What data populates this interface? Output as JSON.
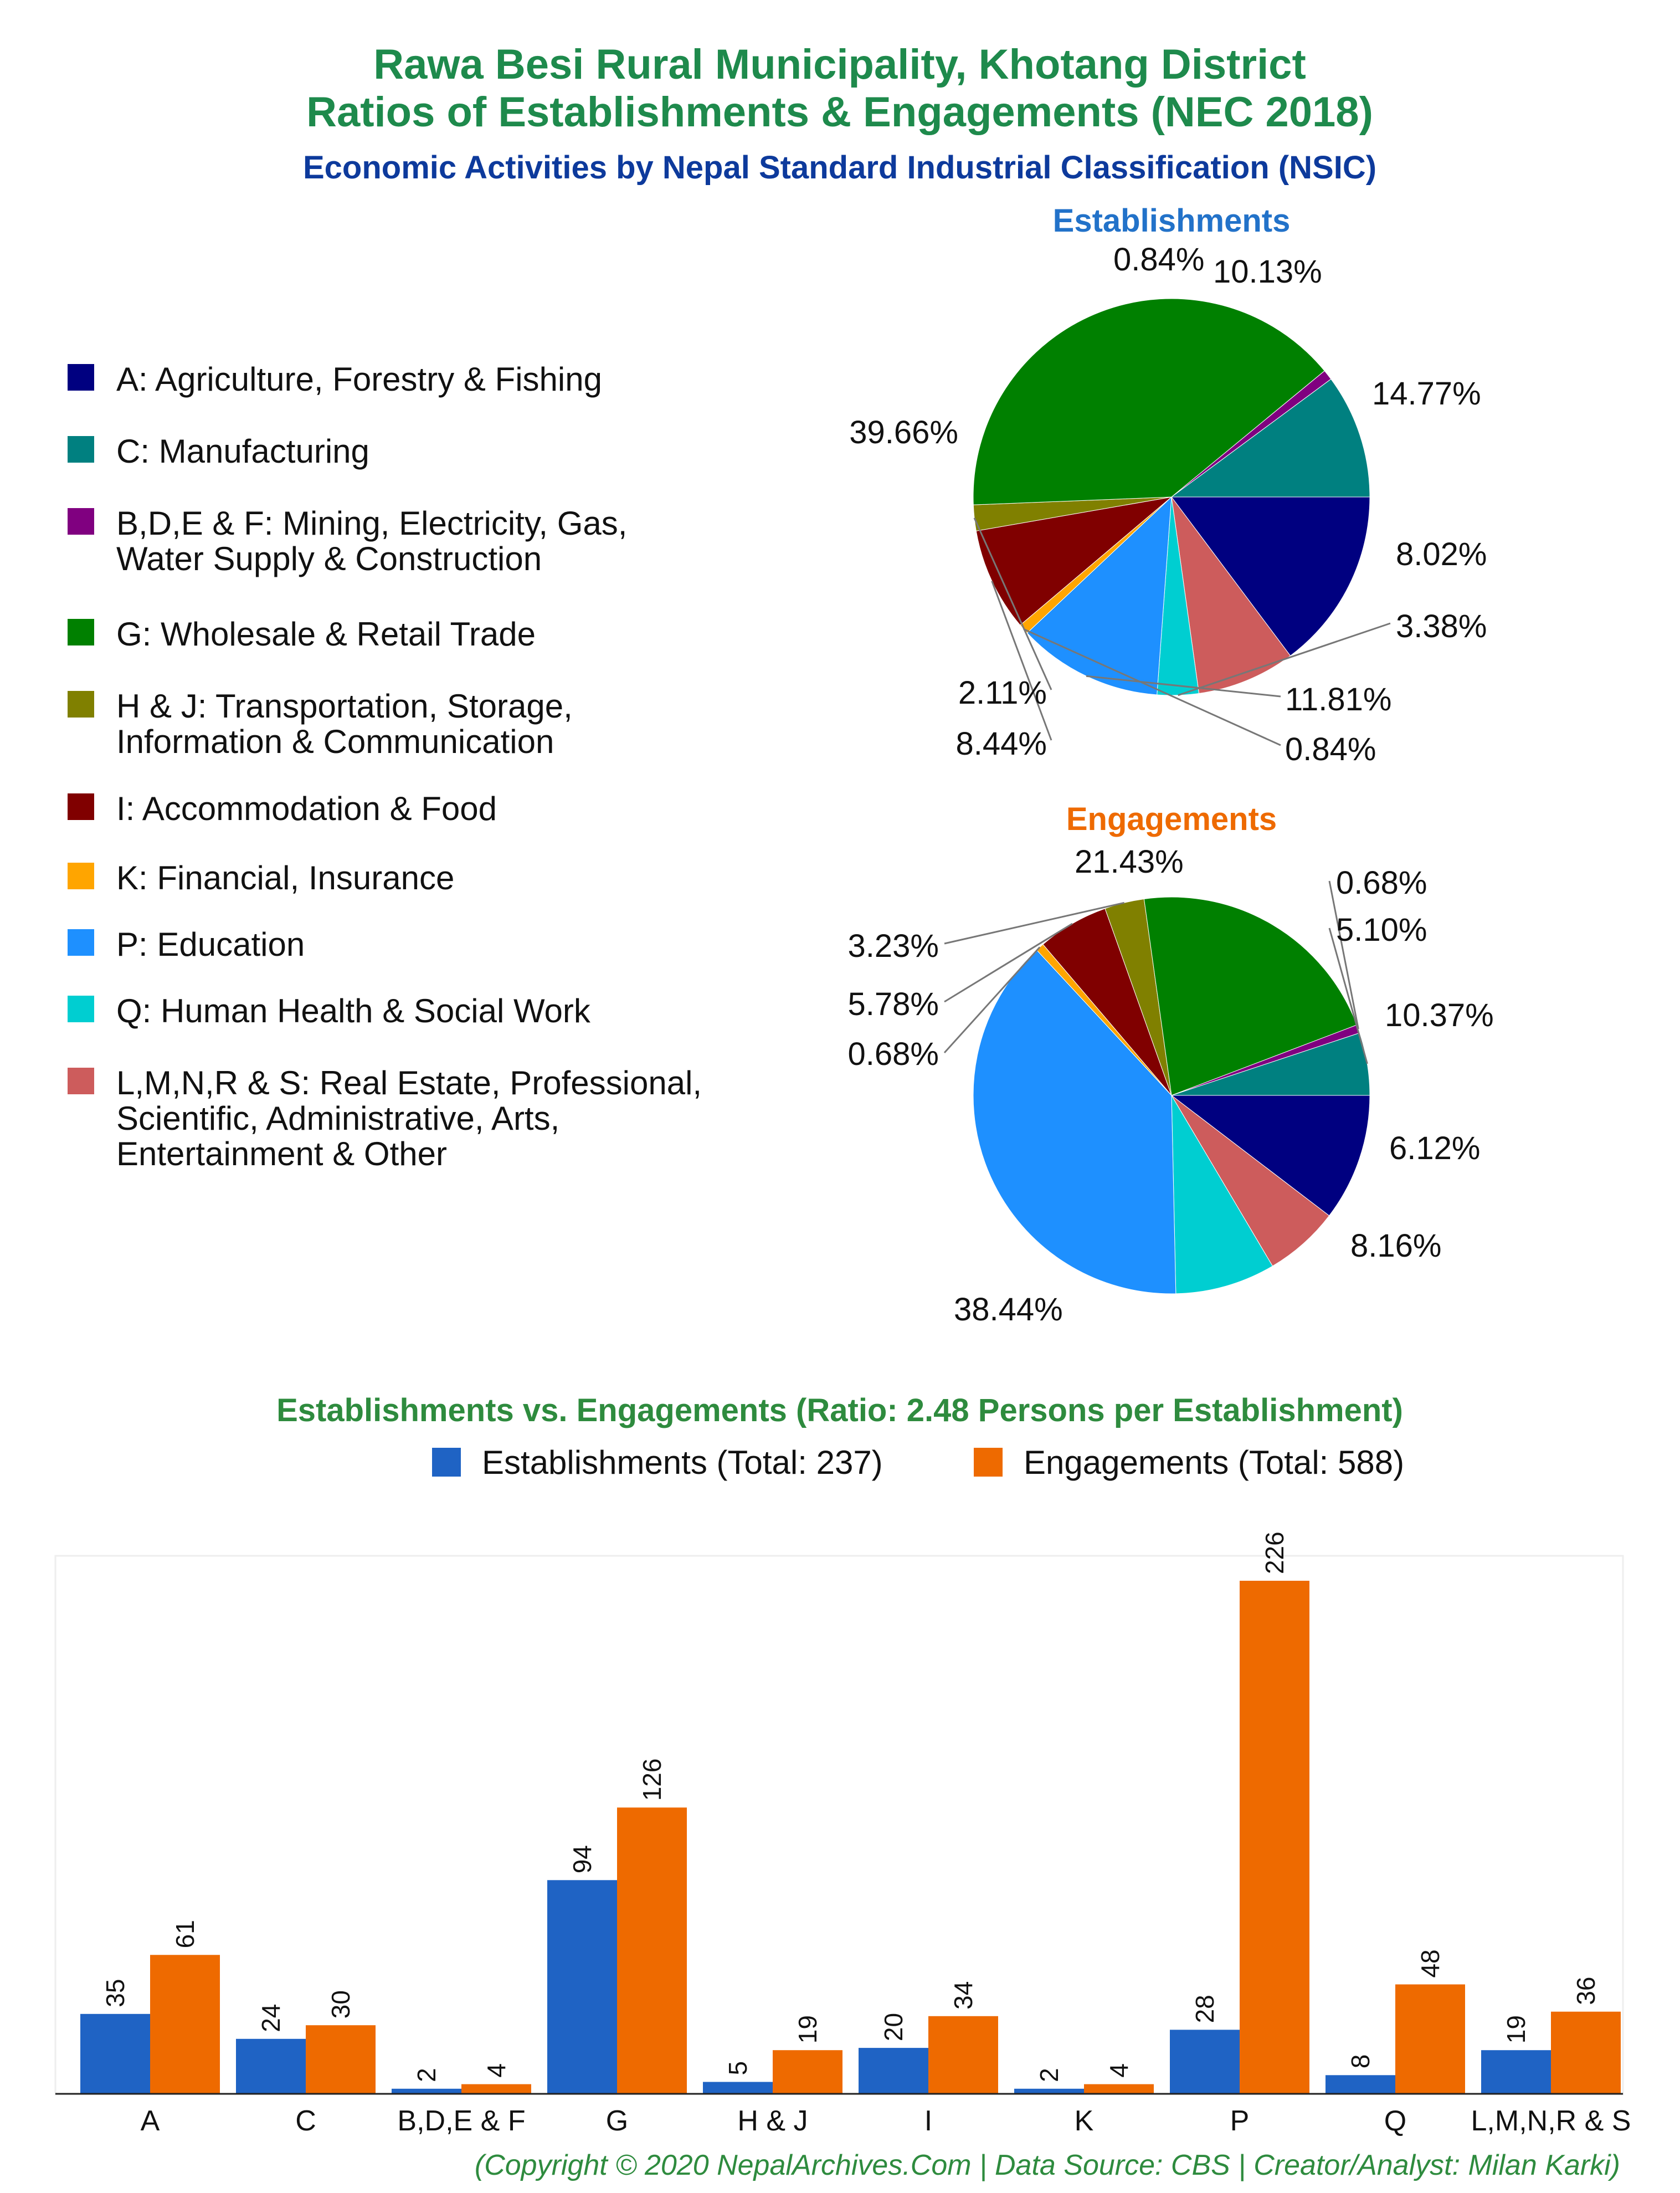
{
  "titles": {
    "line1": "Rawa Besi Rural Municipality, Khotang District",
    "line2": "Ratios of Establishments & Engagements (NEC 2018)",
    "line3": "Economic Activities by Nepal Standard Industrial Classification (NSIC)"
  },
  "colors": {
    "title": "#1e8a4c",
    "subtitle": "#0d3a9c",
    "establishments": "#1f63c4",
    "engagements": "#ee6a00",
    "establishments_title": "#2272c9",
    "engagements_title": "#ee6a00"
  },
  "legend": [
    {
      "label": "A: Agriculture, Forestry & Fishing",
      "color": "#000080"
    },
    {
      "label": "C: Manufacturing",
      "color": "#008080"
    },
    {
      "label": "B,D,E & F: Mining, Electricity, Gas,\nWater Supply & Construction",
      "color": "#800080"
    },
    {
      "label": "G: Wholesale & Retail Trade",
      "color": "#008000"
    },
    {
      "label": "H & J: Transportation, Storage,\nInformation & Communication",
      "color": "#808000"
    },
    {
      "label": "I: Accommodation & Food",
      "color": "#800000"
    },
    {
      "label": "K: Financial, Insurance",
      "color": "#ffa500"
    },
    {
      "label": "P: Education",
      "color": "#1e90ff"
    },
    {
      "label": "Q: Human Health & Social Work",
      "color": "#00ced1"
    },
    {
      "label": "L,M,N,R & S: Real Estate, Professional,\nScientific, Administrative, Arts,\nEntertainment & Other",
      "color": "#cd5c5c"
    }
  ],
  "chart_data": [
    {
      "type": "pie",
      "title": "Establishments",
      "slices": [
        {
          "category": "A",
          "value": 14.77,
          "label": "14.77%",
          "color": "#000080"
        },
        {
          "category": "L,M,N,R & S",
          "value": 8.02,
          "label": "8.02%",
          "color": "#cd5c5c"
        },
        {
          "category": "Q",
          "value": 3.38,
          "label": "3.38%",
          "color": "#00ced1"
        },
        {
          "category": "P",
          "value": 11.81,
          "label": "11.81%",
          "color": "#1e90ff"
        },
        {
          "category": "K",
          "value": 0.84,
          "label": "0.84%",
          "color": "#ffa500"
        },
        {
          "category": "I",
          "value": 8.44,
          "label": "8.44%",
          "color": "#800000"
        },
        {
          "category": "H & J",
          "value": 2.11,
          "label": "2.11%",
          "color": "#808000"
        },
        {
          "category": "G",
          "value": 39.66,
          "label": "39.66%",
          "color": "#008000"
        },
        {
          "category": "B,D,E & F",
          "value": 0.84,
          "label": "0.84%",
          "color": "#800080"
        },
        {
          "category": "C",
          "value": 10.13,
          "label": "10.13%",
          "color": "#008080"
        }
      ]
    },
    {
      "type": "pie",
      "title": "Engagements",
      "slices": [
        {
          "category": "A",
          "value": 10.37,
          "label": "10.37%",
          "color": "#000080"
        },
        {
          "category": "L,M,N,R & S",
          "value": 6.12,
          "label": "6.12%",
          "color": "#cd5c5c"
        },
        {
          "category": "Q",
          "value": 8.16,
          "label": "8.16%",
          "color": "#00ced1"
        },
        {
          "category": "P",
          "value": 38.44,
          "label": "38.44%",
          "color": "#1e90ff"
        },
        {
          "category": "K",
          "value": 0.68,
          "label": "0.68%",
          "color": "#ffa500"
        },
        {
          "category": "I",
          "value": 5.78,
          "label": "5.78%",
          "color": "#800000"
        },
        {
          "category": "H & J",
          "value": 3.23,
          "label": "3.23%",
          "color": "#808000"
        },
        {
          "category": "G",
          "value": 21.43,
          "label": "21.43%",
          "color": "#008000"
        },
        {
          "category": "B,D,E & F",
          "value": 0.68,
          "label": "0.68%",
          "color": "#800080"
        },
        {
          "category": "C",
          "value": 5.1,
          "label": "5.10%",
          "color": "#008080"
        }
      ]
    },
    {
      "type": "bar",
      "title": "Establishments vs. Engagements (Ratio: 2.48 Persons per Establishment)",
      "categories": [
        "A",
        "C",
        "B,D,E & F",
        "G",
        "H & J",
        "I",
        "K",
        "P",
        "Q",
        "L,M,N,R & S"
      ],
      "series": [
        {
          "name": "Establishments (Total: 237)",
          "values": [
            35,
            24,
            2,
            94,
            5,
            20,
            2,
            28,
            8,
            19
          ],
          "color": "#1f63c4"
        },
        {
          "name": "Engagements (Total: 588)",
          "values": [
            61,
            30,
            4,
            126,
            19,
            34,
            4,
            226,
            48,
            36
          ],
          "color": "#ee6a00"
        }
      ],
      "ylim": [
        0,
        237
      ]
    }
  ],
  "footer": "(Copyright © 2020 NepalArchives.Com | Data Source: CBS | Creator/Analyst: Milan Karki)"
}
